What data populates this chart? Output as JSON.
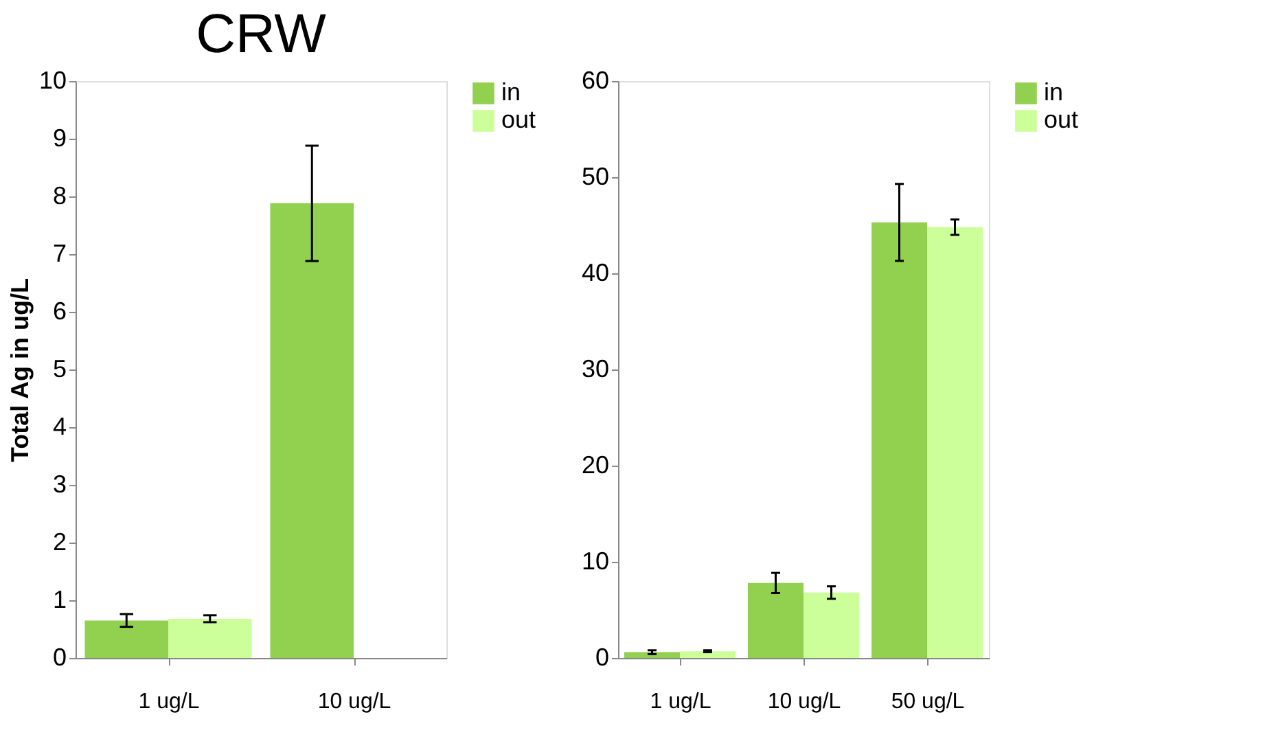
{
  "chart_data": [
    {
      "type": "bar",
      "title": "CRW",
      "ylabel": "Total Ag in ug/L",
      "categories": [
        "1 ug/L",
        "10 ug/L"
      ],
      "ylim": [
        0,
        10
      ],
      "yticks": [
        0,
        1,
        2,
        3,
        4,
        5,
        6,
        7,
        8,
        9,
        10
      ],
      "grid": false,
      "legend": "right",
      "series": [
        {
          "name": "in",
          "color": "#92d050",
          "values": [
            0.65,
            7.88
          ],
          "errors": [
            0.11,
            1.0
          ]
        },
        {
          "name": "out",
          "color": "#ccff99",
          "values": [
            0.68,
            null
          ],
          "errors": [
            0.06,
            null
          ]
        }
      ]
    },
    {
      "type": "bar",
      "categories": [
        "1 ug/L",
        "10 ug/L",
        "50 ug/L"
      ],
      "ylim": [
        0,
        60
      ],
      "yticks": [
        0,
        10,
        20,
        30,
        40,
        50,
        60
      ],
      "grid": false,
      "legend": "right",
      "series": [
        {
          "name": "in",
          "color": "#92d050",
          "values": [
            0.6,
            7.8,
            45.3
          ],
          "errors": [
            0.2,
            1.05,
            4.0
          ]
        },
        {
          "name": "out",
          "color": "#ccff99",
          "values": [
            0.7,
            6.8,
            44.8
          ],
          "errors": [
            0.1,
            0.65,
            0.8
          ]
        }
      ]
    }
  ]
}
